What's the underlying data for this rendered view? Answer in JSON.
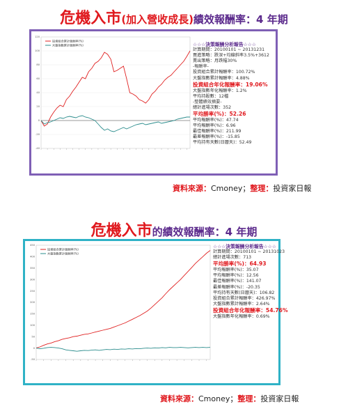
{
  "section1": {
    "title_main": "危機入市",
    "title_sub": "(加入營收成長)",
    "title_tail": "績效報酬率：4 年期",
    "source_label": "資料來源：",
    "source_value": "Cmoney",
    "source_sep": "；",
    "editor_label": "整理：",
    "editor_value": "投資家日報",
    "panel": {
      "header": "☆☆☆決策報酬分析報告☆☆☆",
      "lines": [
        "計算期間：20100101 ~ 20131231",
        "買進策略：跌深+均線斜率3.5%+3612",
        "賣出策略：月跌幅30%",
        "-報酬率-",
        "投資組合累計報酬率：100.72%",
        "大盤指數累計報酬率：4.88%"
      ],
      "highlight1": "投資組合年化報酬率：19.06%",
      "lines2": [
        "大盤指數年化報酬率：1.2%",
        "平均持股數：12檔",
        "-整體績效摘要-",
        "總計進場次數：352"
      ],
      "highlight2": "平均勝率(%)：52.26",
      "lines3": [
        "平均報酬率(%)：47.74",
        "平均報酬率(%)：6.96",
        "最佳報酬率(%)：211.99",
        "最差報酬率(%)：-15.85",
        "平均持有天數(日曆天)：52.49"
      ]
    }
  },
  "section2": {
    "title_main": "危機入市",
    "title_tail": "的績效報酬率：4 年期",
    "source_label": "資料來源：",
    "source_value": "Cmoney",
    "source_sep": "；",
    "editor_label": "整理：",
    "editor_value": "投資家日報",
    "panel": {
      "header": "☆☆☆決策報酬分析報告☆☆☆",
      "lines": [
        "計算期間：20100101 ~ 20131023",
        "總計進場次數：713"
      ],
      "highlight1": "平均勝率(%)：64.93",
      "lines2": [
        "平均報酬率(%)：35.07",
        "平均報酬率(%)：12.56",
        "最佳報酬率(%)：141.07",
        "最差報酬率(%)：-20.35",
        "平均持有天數(日曆天)：106.82",
        "投資組合累計報酬率：426.97%",
        "大盤指數累計報酬率：2.64%"
      ],
      "highlight2": "投資組合年化報酬率：54.76%",
      "lines3": [
        "大盤指數年化報酬率：0.69%"
      ]
    }
  },
  "chart_data": [
    {
      "type": "line",
      "title": "",
      "xlabel": "",
      "ylabel": "",
      "ylim": [
        -40,
        120
      ],
      "yticks": [
        -40,
        -20,
        0,
        20,
        40,
        60,
        80,
        100,
        120
      ],
      "x": [
        0,
        1,
        2,
        3,
        4,
        5,
        6,
        7,
        8,
        9,
        10,
        11,
        12,
        13,
        14,
        15,
        16,
        17,
        18,
        19,
        20,
        21,
        22,
        23,
        24,
        25,
        26,
        27,
        28,
        29,
        30,
        31,
        32,
        33,
        34,
        35,
        36,
        37,
        38,
        39,
        40,
        41,
        42,
        43,
        44,
        45,
        46,
        47
      ],
      "series": [
        {
          "name": "投資組合累計報酬率(%)",
          "color": "#e02020",
          "values": [
            0,
            -8,
            -5,
            5,
            12,
            18,
            22,
            20,
            30,
            35,
            42,
            48,
            55,
            62,
            60,
            70,
            75,
            82,
            85,
            90,
            98,
            95,
            88,
            70,
            72,
            75,
            78,
            60,
            40,
            38,
            35,
            30,
            28,
            25,
            30,
            38,
            42,
            48,
            52,
            58,
            62,
            65,
            70,
            75,
            80,
            85,
            92,
            100
          ]
        },
        {
          "name": "大盤指數累計報酬率(%)",
          "color": "#2a8c8c",
          "values": [
            0,
            -5,
            -3,
            -2,
            0,
            2,
            4,
            3,
            5,
            6,
            5,
            4,
            6,
            7,
            5,
            4,
            2,
            0,
            -5,
            -10,
            -14,
            -12,
            -15,
            -16,
            -14,
            -12,
            -10,
            -12,
            -10,
            -8,
            -6,
            -5,
            -4,
            -6,
            -5,
            -4,
            -3,
            -2,
            -4,
            -3,
            -2,
            -1,
            0,
            2,
            3,
            4,
            5,
            5
          ]
        }
      ]
    },
    {
      "type": "line",
      "title": "",
      "xlabel": "",
      "ylabel": "",
      "ylim": [
        -50,
        450
      ],
      "yticks": [
        -50,
        0,
        50,
        100,
        150,
        200,
        250,
        300,
        350,
        400,
        450
      ],
      "x": [
        0,
        1,
        2,
        3,
        4,
        5,
        6,
        7,
        8,
        9,
        10,
        11,
        12,
        13,
        14,
        15,
        16,
        17,
        18,
        19,
        20,
        21,
        22,
        23,
        24,
        25,
        26,
        27,
        28,
        29,
        30,
        31,
        32,
        33,
        34,
        35,
        36,
        37,
        38,
        39,
        40,
        41,
        42,
        43,
        44,
        45,
        46,
        47
      ],
      "series": [
        {
          "name": "投資組合累計報酬率(%)",
          "color": "#e02020",
          "values": [
            0,
            5,
            12,
            18,
            22,
            28,
            32,
            38,
            42,
            45,
            50,
            52,
            56,
            60,
            62,
            66,
            70,
            74,
            78,
            82,
            86,
            92,
            98,
            104,
            110,
            118,
            126,
            134,
            142,
            152,
            162,
            175,
            190,
            205,
            220,
            238,
            255,
            270,
            285,
            300,
            318,
            335,
            352,
            370,
            385,
            400,
            415,
            427
          ]
        },
        {
          "name": "大盤指數累計報酬率(%)",
          "color": "#2a8c8c",
          "values": [
            0,
            -3,
            -1,
            2,
            3,
            2,
            0,
            -3,
            -8,
            -10,
            -12,
            -14,
            -12,
            -10,
            -11,
            -9,
            -8,
            -10,
            -8,
            -6,
            -7,
            -5,
            -6,
            -4,
            -5,
            -3,
            -4,
            -2,
            -3,
            -1,
            0,
            -1,
            1,
            0,
            2,
            1,
            3,
            2,
            2,
            3,
            2,
            1,
            2,
            3,
            2,
            3,
            2,
            3
          ]
        }
      ]
    }
  ]
}
